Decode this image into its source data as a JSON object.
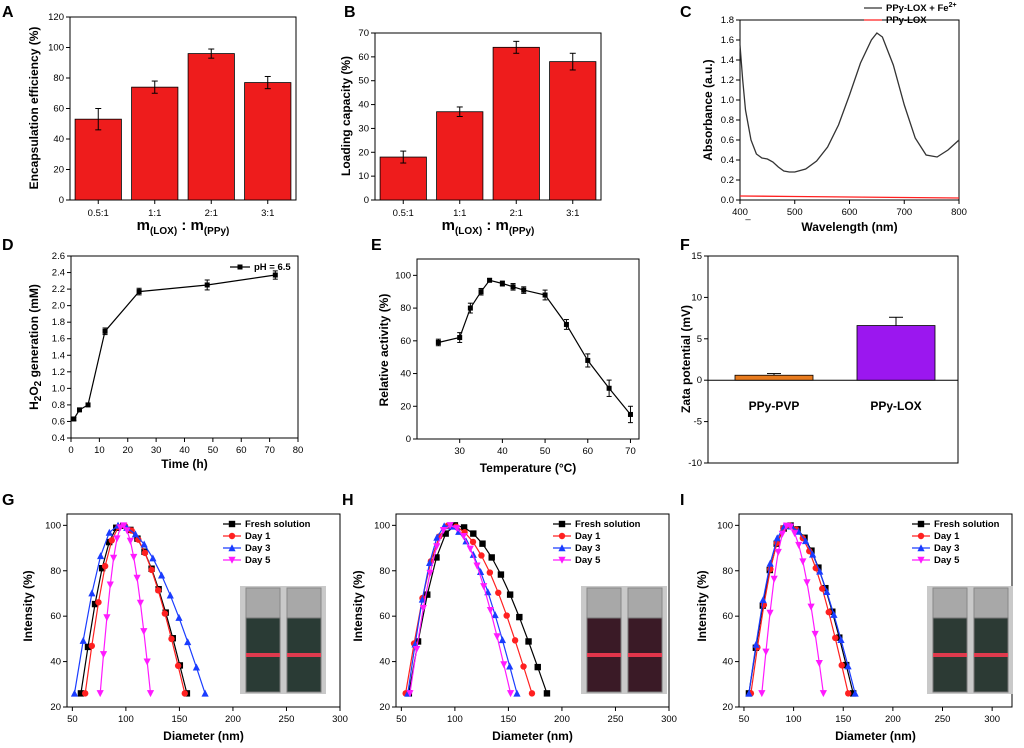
{
  "panels": {
    "A": {
      "label": "A"
    },
    "B": {
      "label": "B"
    },
    "C": {
      "label": "C"
    },
    "D": {
      "label": "D"
    },
    "E": {
      "label": "E"
    },
    "F": {
      "label": "F"
    },
    "G": {
      "label": "G"
    },
    "H": {
      "label": "H"
    },
    "I": {
      "label": "I"
    }
  },
  "colors": {
    "bar_red": "#ee1c1c",
    "ppy_pvp": "#e87b1e",
    "ppy_lox": "#9b17ef",
    "black": "#000000",
    "red": "#ff2020",
    "blue": "#1a3cff",
    "magenta": "#ff1aff",
    "gray_line": "#333333"
  },
  "chart_data": [
    {
      "id": "A",
      "type": "bar",
      "ylabel": "Encapsulation efficiency (%)",
      "xlabel_main": "m",
      "xlabel_sub1": "(LOX)",
      "xlabel_sep": " : m",
      "xlabel_sub2": "(PPy)",
      "categories": [
        "0.5:1",
        "1:1",
        "2:1",
        "3:1"
      ],
      "values": [
        53,
        74,
        96,
        77
      ],
      "errors": [
        7,
        4,
        3,
        4
      ],
      "ylim": [
        0,
        120
      ],
      "yticks": [
        "0",
        "20",
        "40",
        "60",
        "80",
        "100",
        "120"
      ]
    },
    {
      "id": "B",
      "type": "bar",
      "ylabel": "Loading capacity (%)",
      "xlabel_main": "m",
      "xlabel_sub1": "(LOX)",
      "xlabel_sep": " : m",
      "xlabel_sub2": "(PPy)",
      "categories": [
        "0.5:1",
        "1:1",
        "2:1",
        "3:1"
      ],
      "values": [
        18,
        37,
        64,
        58
      ],
      "errors": [
        2.5,
        2,
        2.5,
        3.5
      ],
      "ylim": [
        0,
        70
      ],
      "yticks": [
        "0",
        "10",
        "20",
        "30",
        "40",
        "50",
        "60",
        "70"
      ]
    },
    {
      "id": "C",
      "type": "line",
      "ylabel": "Absorbance (a.u.)",
      "xlabel": "Wavelength (nm)",
      "xlim": [
        400,
        800
      ],
      "ylim": [
        0,
        1.8
      ],
      "xticks": [
        "400",
        "500",
        "600",
        "700",
        "800"
      ],
      "yticks": [
        "0.0",
        "0.2",
        "0.4",
        "0.6",
        "0.8",
        "1.0",
        "1.2",
        "1.4",
        "1.6",
        "1.8"
      ],
      "dash_mark": "–",
      "series": [
        {
          "name": "PPy-LOX + Fe",
          "name_sup": "2+",
          "x": [
            400,
            405,
            410,
            420,
            430,
            440,
            450,
            460,
            470,
            480,
            490,
            500,
            520,
            540,
            560,
            580,
            600,
            620,
            640,
            650,
            660,
            680,
            700,
            720,
            740,
            760,
            780,
            800
          ],
          "y": [
            1.55,
            1.2,
            0.9,
            0.6,
            0.46,
            0.42,
            0.41,
            0.38,
            0.33,
            0.29,
            0.28,
            0.28,
            0.31,
            0.39,
            0.53,
            0.75,
            1.05,
            1.37,
            1.6,
            1.67,
            1.63,
            1.35,
            0.95,
            0.62,
            0.45,
            0.43,
            0.5,
            0.6
          ]
        },
        {
          "name": "PPy-LOX",
          "name_sup": "",
          "x": [
            400,
            500,
            600,
            700,
            800
          ],
          "y": [
            0.04,
            0.035,
            0.03,
            0.025,
            0.02
          ]
        }
      ]
    },
    {
      "id": "D",
      "type": "line",
      "ylabel_pre": "H",
      "ylabel_sub1": "2",
      "ylabel_mid": "O",
      "ylabel_sub2": "2",
      "ylabel_post": " generation (mM)",
      "xlabel": "Time (h)",
      "xlim": [
        0,
        80
      ],
      "ylim": [
        0.4,
        2.6
      ],
      "xticks": [
        "0",
        "10",
        "20",
        "30",
        "40",
        "50",
        "60",
        "70",
        "80"
      ],
      "yticks": [
        "0.4",
        "0.6",
        "0.8",
        "1.0",
        "1.2",
        "1.4",
        "1.6",
        "1.8",
        "2.0",
        "2.2",
        "2.4",
        "2.6"
      ],
      "series": [
        {
          "name": "pH = 6.5",
          "x": [
            1,
            3,
            6,
            12,
            24,
            48,
            72
          ],
          "y": [
            0.63,
            0.74,
            0.8,
            1.69,
            2.17,
            2.25,
            2.37
          ],
          "errors": [
            0.02,
            0.02,
            0.02,
            0.04,
            0.04,
            0.06,
            0.05
          ]
        }
      ]
    },
    {
      "id": "E",
      "type": "line",
      "ylabel": "Relative activity (%)",
      "xlabel": "Temperature (°C)",
      "xlim": [
        20,
        72
      ],
      "ylim": [
        0,
        110
      ],
      "xticks": [
        "30",
        "40",
        "50",
        "60",
        "70"
      ],
      "yticks": [
        "0",
        "20",
        "40",
        "60",
        "80",
        "100"
      ],
      "series": [
        {
          "name": "activity",
          "x": [
            25,
            30,
            32.5,
            35,
            37,
            40,
            42.5,
            45,
            50,
            55,
            60,
            65,
            70
          ],
          "y": [
            59,
            62,
            80,
            90,
            97,
            95,
            93,
            91,
            88,
            70,
            48,
            31,
            15
          ],
          "errors": [
            2,
            3,
            3,
            2,
            1,
            1.5,
            2,
            2,
            3,
            3,
            4,
            5,
            5
          ]
        }
      ]
    },
    {
      "id": "F",
      "type": "bar",
      "ylabel": "Zata potential (mV)",
      "categories": [
        "PPy-PVP",
        "PPy-LOX"
      ],
      "values": [
        0.6,
        6.6
      ],
      "errors": [
        0.2,
        1.0
      ],
      "ylim": [
        -10,
        15
      ],
      "yticks": [
        "-10",
        "-5",
        "0",
        "5",
        "10",
        "15"
      ]
    },
    {
      "id": "G",
      "type": "line",
      "ylabel": "Intensity (%)",
      "xlabel": "Diameter (nm)",
      "xlim": [
        45,
        300
      ],
      "ylim": [
        20,
        105
      ],
      "xticks": [
        "50",
        "100",
        "150",
        "200",
        "250",
        "300"
      ],
      "yticks": [
        "20",
        "40",
        "60",
        "80",
        "100"
      ],
      "series": [
        {
          "name": "Fresh solution",
          "range": [
            58,
            95,
            157
          ]
        },
        {
          "name": "Day 1",
          "range": [
            62,
            96,
            155
          ]
        },
        {
          "name": "Day 3",
          "range": [
            52,
            92,
            174
          ]
        },
        {
          "name": "Day 5",
          "range": [
            76,
            97,
            123
          ]
        }
      ]
    },
    {
      "id": "H",
      "type": "line",
      "ylabel": "Intensity (%)",
      "xlabel": "Diameter (nm)",
      "xlim": [
        45,
        300
      ],
      "ylim": [
        20,
        105
      ],
      "xticks": [
        "50",
        "100",
        "150",
        "200",
        "250",
        "300"
      ],
      "yticks": [
        "20",
        "40",
        "60",
        "80",
        "100"
      ],
      "series": [
        {
          "name": "Fresh solution",
          "range": [
            57,
            100,
            186
          ]
        },
        {
          "name": "Day 1",
          "range": [
            54,
            95,
            172
          ]
        },
        {
          "name": "Day 3",
          "range": [
            56,
            92,
            158
          ]
        },
        {
          "name": "Day 5",
          "range": [
            58,
            95,
            152
          ]
        }
      ]
    },
    {
      "id": "I",
      "type": "line",
      "ylabel": "Intensity (%)",
      "xlabel": "Diameter (nm)",
      "xlim": [
        45,
        320
      ],
      "ylim": [
        20,
        105
      ],
      "xticks": [
        "50",
        "100",
        "150",
        "200",
        "250",
        "300"
      ],
      "yticks": [
        "20",
        "40",
        "60",
        "80",
        "100"
      ],
      "series": [
        {
          "name": "Fresh solution",
          "range": [
            55,
            95,
            160
          ]
        },
        {
          "name": "Day 1",
          "range": [
            57,
            94,
            155
          ]
        },
        {
          "name": "Day 3",
          "range": [
            55,
            93,
            162
          ]
        },
        {
          "name": "Day 5",
          "range": [
            68,
            94,
            130
          ]
        }
      ]
    }
  ]
}
